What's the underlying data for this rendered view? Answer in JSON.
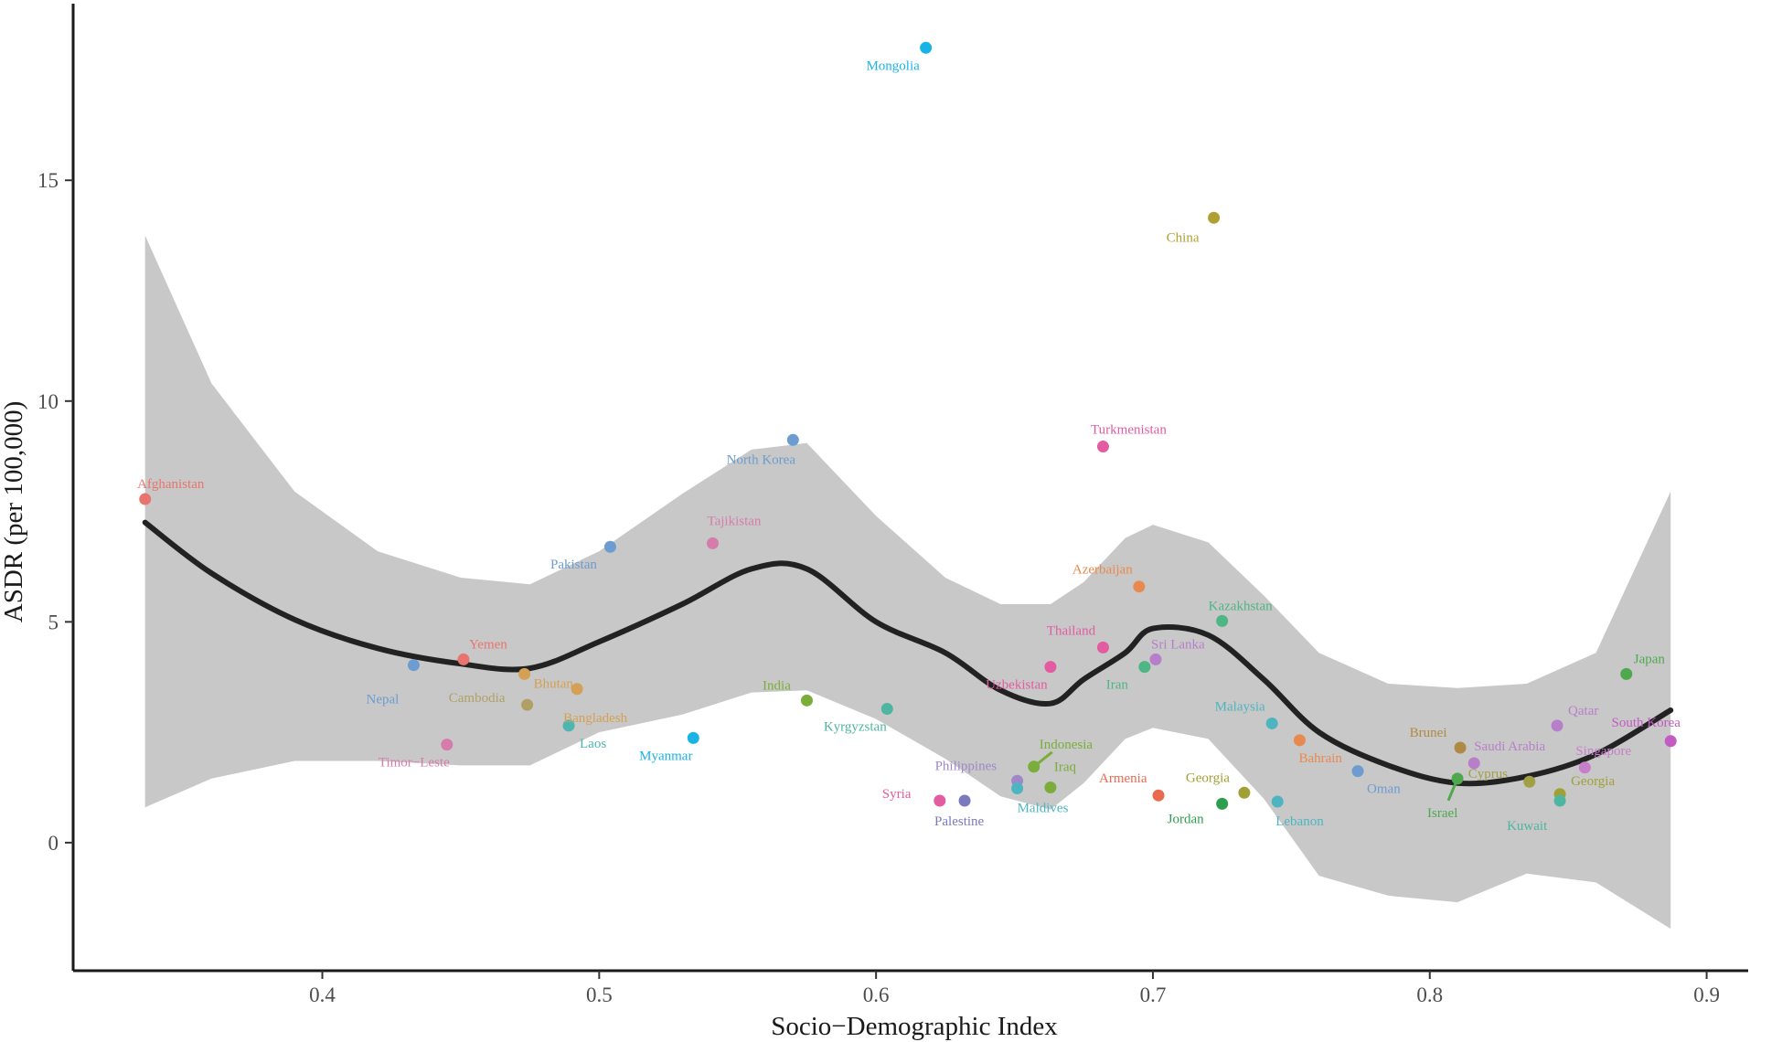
{
  "chart_data": {
    "type": "scatter",
    "title": "",
    "xlabel": "Socio−Demographic Index",
    "ylabel": "ASDR (per 100,000)",
    "xlim": [
      0.31,
      0.915
    ],
    "ylim": [
      -2.9,
      19.0
    ],
    "x_ticks": [
      {
        "value": 0.4,
        "label": "0.4"
      },
      {
        "value": 0.5,
        "label": "0.5"
      },
      {
        "value": 0.6,
        "label": "0.6"
      },
      {
        "value": 0.7,
        "label": "0.7"
      },
      {
        "value": 0.8,
        "label": "0.8"
      },
      {
        "value": 0.9,
        "label": "0.9"
      }
    ],
    "y_ticks": [
      {
        "value": 0,
        "label": "0"
      },
      {
        "value": 5,
        "label": "5"
      },
      {
        "value": 10,
        "label": "10"
      },
      {
        "value": 15,
        "label": "15"
      }
    ],
    "grid": false,
    "legend": "none",
    "smooth_line_color": "#222222",
    "ribbon_color": "#c8c8c8",
    "points": [
      {
        "label": "Afghanistan",
        "x": 0.336,
        "y": 7.78,
        "color": "#e8756d"
      },
      {
        "label": "Mongolia",
        "x": 0.618,
        "y": 18.0,
        "color": "#1ab3e6"
      },
      {
        "label": "China",
        "x": 0.722,
        "y": 14.15,
        "color": "#b0a033"
      },
      {
        "label": "North Korea",
        "x": 0.57,
        "y": 9.12,
        "color": "#6c9cd0"
      },
      {
        "label": "Turkmenistan",
        "x": 0.682,
        "y": 8.97,
        "color": "#e35ba0"
      },
      {
        "label": "Tajikistan",
        "x": 0.541,
        "y": 6.78,
        "color": "#d67cab"
      },
      {
        "label": "Pakistan",
        "x": 0.504,
        "y": 6.7,
        "color": "#6c9cd0"
      },
      {
        "label": "Azerbaijan",
        "x": 0.695,
        "y": 5.8,
        "color": "#e88a4f"
      },
      {
        "label": "Kazakhstan",
        "x": 0.725,
        "y": 5.02,
        "color": "#4eb584"
      },
      {
        "label": "Thailand",
        "x": 0.682,
        "y": 4.42,
        "color": "#e35ba0"
      },
      {
        "label": "Sri Lanka",
        "x": 0.701,
        "y": 4.15,
        "color": "#b77fc9"
      },
      {
        "label": "Yemen",
        "x": 0.451,
        "y": 4.15,
        "color": "#e8756d"
      },
      {
        "label": "Uzbekistan",
        "x": 0.663,
        "y": 3.98,
        "color": "#e35ba0"
      },
      {
        "label": "Iran",
        "x": 0.697,
        "y": 3.98,
        "color": "#4eb584"
      },
      {
        "label": "Nepal",
        "x": 0.433,
        "y": 4.02,
        "color": "#6c9cd0"
      },
      {
        "label": "Bhutan",
        "x": 0.473,
        "y": 3.82,
        "color": "#d4a055"
      },
      {
        "label": "Japan",
        "x": 0.871,
        "y": 3.82,
        "color": "#4ea84e"
      },
      {
        "label": "Bangladesh",
        "x": 0.492,
        "y": 3.48,
        "color": "#d4a055"
      },
      {
        "label": "India",
        "x": 0.575,
        "y": 3.22,
        "color": "#7aad3a"
      },
      {
        "label": "Cambodia",
        "x": 0.474,
        "y": 3.12,
        "color": "#b0a065"
      },
      {
        "label": "Kyrgyzstan",
        "x": 0.604,
        "y": 3.03,
        "color": "#4eb5a0"
      },
      {
        "label": "Malaysia",
        "x": 0.743,
        "y": 2.7,
        "color": "#4eb5c0"
      },
      {
        "label": "Laos",
        "x": 0.489,
        "y": 2.65,
        "color": "#4eb5b0"
      },
      {
        "label": "Qatar",
        "x": 0.846,
        "y": 2.65,
        "color": "#b77fc9"
      },
      {
        "label": "Myanmar",
        "x": 0.534,
        "y": 2.37,
        "color": "#1ab3e6"
      },
      {
        "label": "Bahrain",
        "x": 0.753,
        "y": 2.32,
        "color": "#e88a4f"
      },
      {
        "label": "South Korea",
        "x": 0.887,
        "y": 2.3,
        "color": "#c25bc2"
      },
      {
        "label": "Timor−Leste",
        "x": 0.445,
        "y": 2.22,
        "color": "#d67cab"
      },
      {
        "label": "Brunei",
        "x": 0.811,
        "y": 2.15,
        "color": "#b08a45"
      },
      {
        "label": "Saudi Arabia",
        "x": 0.816,
        "y": 1.8,
        "color": "#b77fc9"
      },
      {
        "label": "Indonesia",
        "x": 0.657,
        "y": 1.72,
        "color": "#7aad3a"
      },
      {
        "label": "Singapore",
        "x": 0.856,
        "y": 1.7,
        "color": "#c77fc9"
      },
      {
        "label": "Oman",
        "x": 0.774,
        "y": 1.62,
        "color": "#6c9cd0"
      },
      {
        "label": "Israel",
        "x": 0.81,
        "y": 1.45,
        "color": "#4ea84e"
      },
      {
        "label": "Philippines",
        "x": 0.651,
        "y": 1.4,
        "color": "#9e88c7"
      },
      {
        "label": "Cyprus",
        "x": 0.836,
        "y": 1.38,
        "color": "#a0a045"
      },
      {
        "label": "Iraq",
        "x": 0.663,
        "y": 1.25,
        "color": "#7aad3a"
      },
      {
        "label": "Maldives",
        "x": 0.651,
        "y": 1.23,
        "color": "#4eb5c0"
      },
      {
        "label": "Georgia",
        "x": 0.733,
        "y": 1.13,
        "color": "#a0a035"
      },
      {
        "label": "Georgia",
        "x": 0.847,
        "y": 1.1,
        "color": "#a0a035"
      },
      {
        "label": "Armenia",
        "x": 0.702,
        "y": 1.07,
        "color": "#e86a4f"
      },
      {
        "label": "Syria",
        "x": 0.623,
        "y": 0.95,
        "color": "#e35ba0"
      },
      {
        "label": "Palestine",
        "x": 0.632,
        "y": 0.95,
        "color": "#7a7abf"
      },
      {
        "label": "Lebanon",
        "x": 0.745,
        "y": 0.93,
        "color": "#4eb5c0"
      },
      {
        "label": "Kuwait",
        "x": 0.847,
        "y": 0.95,
        "color": "#4eb5a0"
      },
      {
        "label": "Jordan",
        "x": 0.725,
        "y": 0.88,
        "color": "#2e9e4e"
      }
    ],
    "smooth_fit": {
      "x": [
        0.336,
        0.36,
        0.39,
        0.42,
        0.45,
        0.475,
        0.5,
        0.53,
        0.555,
        0.575,
        0.6,
        0.625,
        0.645,
        0.663,
        0.675,
        0.69,
        0.7,
        0.72,
        0.74,
        0.76,
        0.785,
        0.81,
        0.835,
        0.86,
        0.887
      ],
      "y": [
        7.25,
        6.1,
        5.05,
        4.4,
        4.05,
        3.95,
        4.55,
        5.4,
        6.2,
        6.2,
        5.0,
        4.3,
        3.45,
        3.15,
        3.7,
        4.3,
        4.85,
        4.7,
        3.7,
        2.5,
        1.75,
        1.35,
        1.5,
        2.0,
        3.0
      ]
    },
    "confidence_band": {
      "x": [
        0.336,
        0.36,
        0.39,
        0.42,
        0.45,
        0.475,
        0.5,
        0.53,
        0.555,
        0.575,
        0.6,
        0.625,
        0.645,
        0.663,
        0.675,
        0.69,
        0.7,
        0.72,
        0.74,
        0.76,
        0.785,
        0.81,
        0.835,
        0.86,
        0.887
      ],
      "upper": [
        13.75,
        10.4,
        7.95,
        6.6,
        6.0,
        5.85,
        6.6,
        7.9,
        8.9,
        9.05,
        7.4,
        6.0,
        5.4,
        5.4,
        5.9,
        6.9,
        7.2,
        6.8,
        5.6,
        4.3,
        3.6,
        3.5,
        3.6,
        4.3,
        7.95
      ],
      "lower": [
        0.8,
        1.45,
        1.85,
        1.85,
        1.75,
        1.75,
        2.5,
        2.9,
        3.4,
        3.45,
        2.8,
        1.9,
        1.05,
        0.75,
        1.35,
        2.35,
        2.6,
        2.35,
        1.0,
        -0.75,
        -1.2,
        -1.35,
        -0.7,
        -0.9,
        -1.95
      ]
    }
  }
}
